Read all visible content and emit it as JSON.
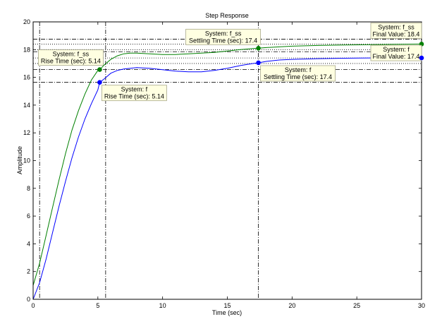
{
  "chart_data": {
    "type": "line",
    "title": "Step Response",
    "xlabel": "Time (sec)",
    "ylabel": "Amplitude",
    "xlim": [
      0,
      30
    ],
    "ylim": [
      0,
      20
    ],
    "xticks": [
      "0",
      "5",
      "10",
      "15",
      "20",
      "25",
      "30"
    ],
    "yticks": [
      "0",
      "2",
      "4",
      "6",
      "8",
      "10",
      "12",
      "14",
      "16",
      "18",
      "20"
    ],
    "grid": false,
    "series": [
      {
        "name": "f",
        "color": "#0000ff",
        "x": [
          0,
          0.5,
          1,
          1.5,
          2,
          2.5,
          3,
          3.5,
          4,
          4.5,
          5,
          5.14,
          5.5,
          6,
          6.5,
          7,
          7.5,
          8,
          9,
          10,
          11,
          12,
          13,
          14,
          15,
          16,
          17,
          17.4,
          18,
          19,
          20,
          22,
          24,
          26,
          28,
          30
        ],
        "y": [
          0,
          1.2,
          2.9,
          4.8,
          6.7,
          8.5,
          10.2,
          11.7,
          13.0,
          14.1,
          15.1,
          15.64,
          15.9,
          16.3,
          16.5,
          16.6,
          16.65,
          16.7,
          16.65,
          16.55,
          16.45,
          16.4,
          16.4,
          16.5,
          16.65,
          16.85,
          17.0,
          17.05,
          17.15,
          17.25,
          17.3,
          17.35,
          17.38,
          17.4,
          17.4,
          17.4
        ]
      },
      {
        "name": "f_ss",
        "color": "#008000",
        "x": [
          0,
          0.5,
          1,
          1.5,
          2,
          2.5,
          3,
          3.5,
          4,
          4.5,
          5,
          5.14,
          5.5,
          6,
          6.5,
          7,
          7.5,
          8,
          9,
          10,
          11,
          12,
          13,
          14,
          15,
          16,
          17,
          17.4,
          18,
          19,
          20,
          22,
          24,
          26,
          28,
          30
        ],
        "y": [
          1.0,
          2.6,
          4.6,
          6.6,
          8.6,
          10.5,
          12.2,
          13.6,
          14.8,
          15.8,
          16.5,
          16.56,
          16.9,
          17.3,
          17.55,
          17.7,
          17.75,
          17.75,
          17.7,
          17.65,
          17.65,
          17.7,
          17.75,
          17.8,
          17.9,
          18.0,
          18.08,
          18.1,
          18.15,
          18.2,
          18.25,
          18.3,
          18.33,
          18.36,
          18.38,
          18.4
        ]
      }
    ],
    "markers": [
      {
        "series": "f_ss",
        "x": 5.14,
        "y": 16.56,
        "lines": [
          "System: f_ss",
          "Rise Time (sec): 5.14"
        ]
      },
      {
        "series": "f",
        "x": 5.14,
        "y": 15.64,
        "lines": [
          "System: f",
          "Rise Time (sec): 5.14"
        ]
      },
      {
        "series": "f_ss",
        "x": 17.4,
        "y": 18.1,
        "lines": [
          "System: f_ss",
          "Settling Time (sec): 17.4"
        ]
      },
      {
        "series": "f",
        "x": 17.4,
        "y": 17.05,
        "lines": [
          "System: f",
          "Settling Time (sec): 17.4"
        ]
      },
      {
        "series": "f_ss",
        "x": 30,
        "y": 18.4,
        "lines": [
          "System: f_ss",
          "Final Value: 18.4"
        ]
      },
      {
        "series": "f",
        "x": 30,
        "y": 17.4,
        "lines": [
          "System: f",
          "Final Value: 17.4"
        ]
      }
    ],
    "reference_lines": {
      "horizontal_dashdot": [
        18.75,
        17.85,
        15.64,
        16.56
      ],
      "horizontal_dotted": [
        18.4,
        18.0,
        17.4,
        17.0
      ],
      "vertical_dashdot": [
        0.5,
        5.6,
        17.4
      ]
    }
  }
}
